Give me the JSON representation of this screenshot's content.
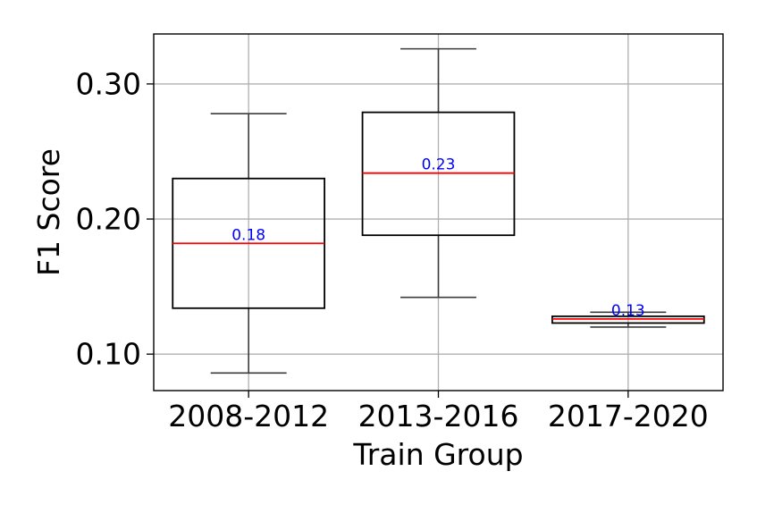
{
  "chart_data": {
    "type": "box",
    "xlabel": "Train Group",
    "ylabel": "F1 Score",
    "ylim": [
      0.073,
      0.337
    ],
    "y_ticks": [
      {
        "value": 0.1,
        "label": "0.10"
      },
      {
        "value": 0.2,
        "label": "0.20"
      },
      {
        "value": 0.3,
        "label": "0.30"
      }
    ],
    "grid": true,
    "categories": [
      "2008-2012",
      "2013-2016",
      "2017-2020"
    ],
    "boxes": [
      {
        "category": "2008-2012",
        "whisker_low": 0.086,
        "q1": 0.134,
        "median": 0.182,
        "q3": 0.23,
        "whisker_high": 0.278,
        "median_label": "0.18"
      },
      {
        "category": "2013-2016",
        "whisker_low": 0.142,
        "q1": 0.188,
        "median": 0.234,
        "q3": 0.279,
        "whisker_high": 0.326,
        "median_label": "0.23"
      },
      {
        "category": "2017-2020",
        "whisker_low": 0.12,
        "q1": 0.123,
        "median": 0.126,
        "q3": 0.128,
        "whisker_high": 0.131,
        "median_label": "0.13"
      }
    ],
    "colors": {
      "box_edge": "#000000",
      "whisker": "#3c3c3c",
      "median_line": "#ff0000",
      "median_label": "#0000ff",
      "grid": "#b0b0b0"
    }
  }
}
